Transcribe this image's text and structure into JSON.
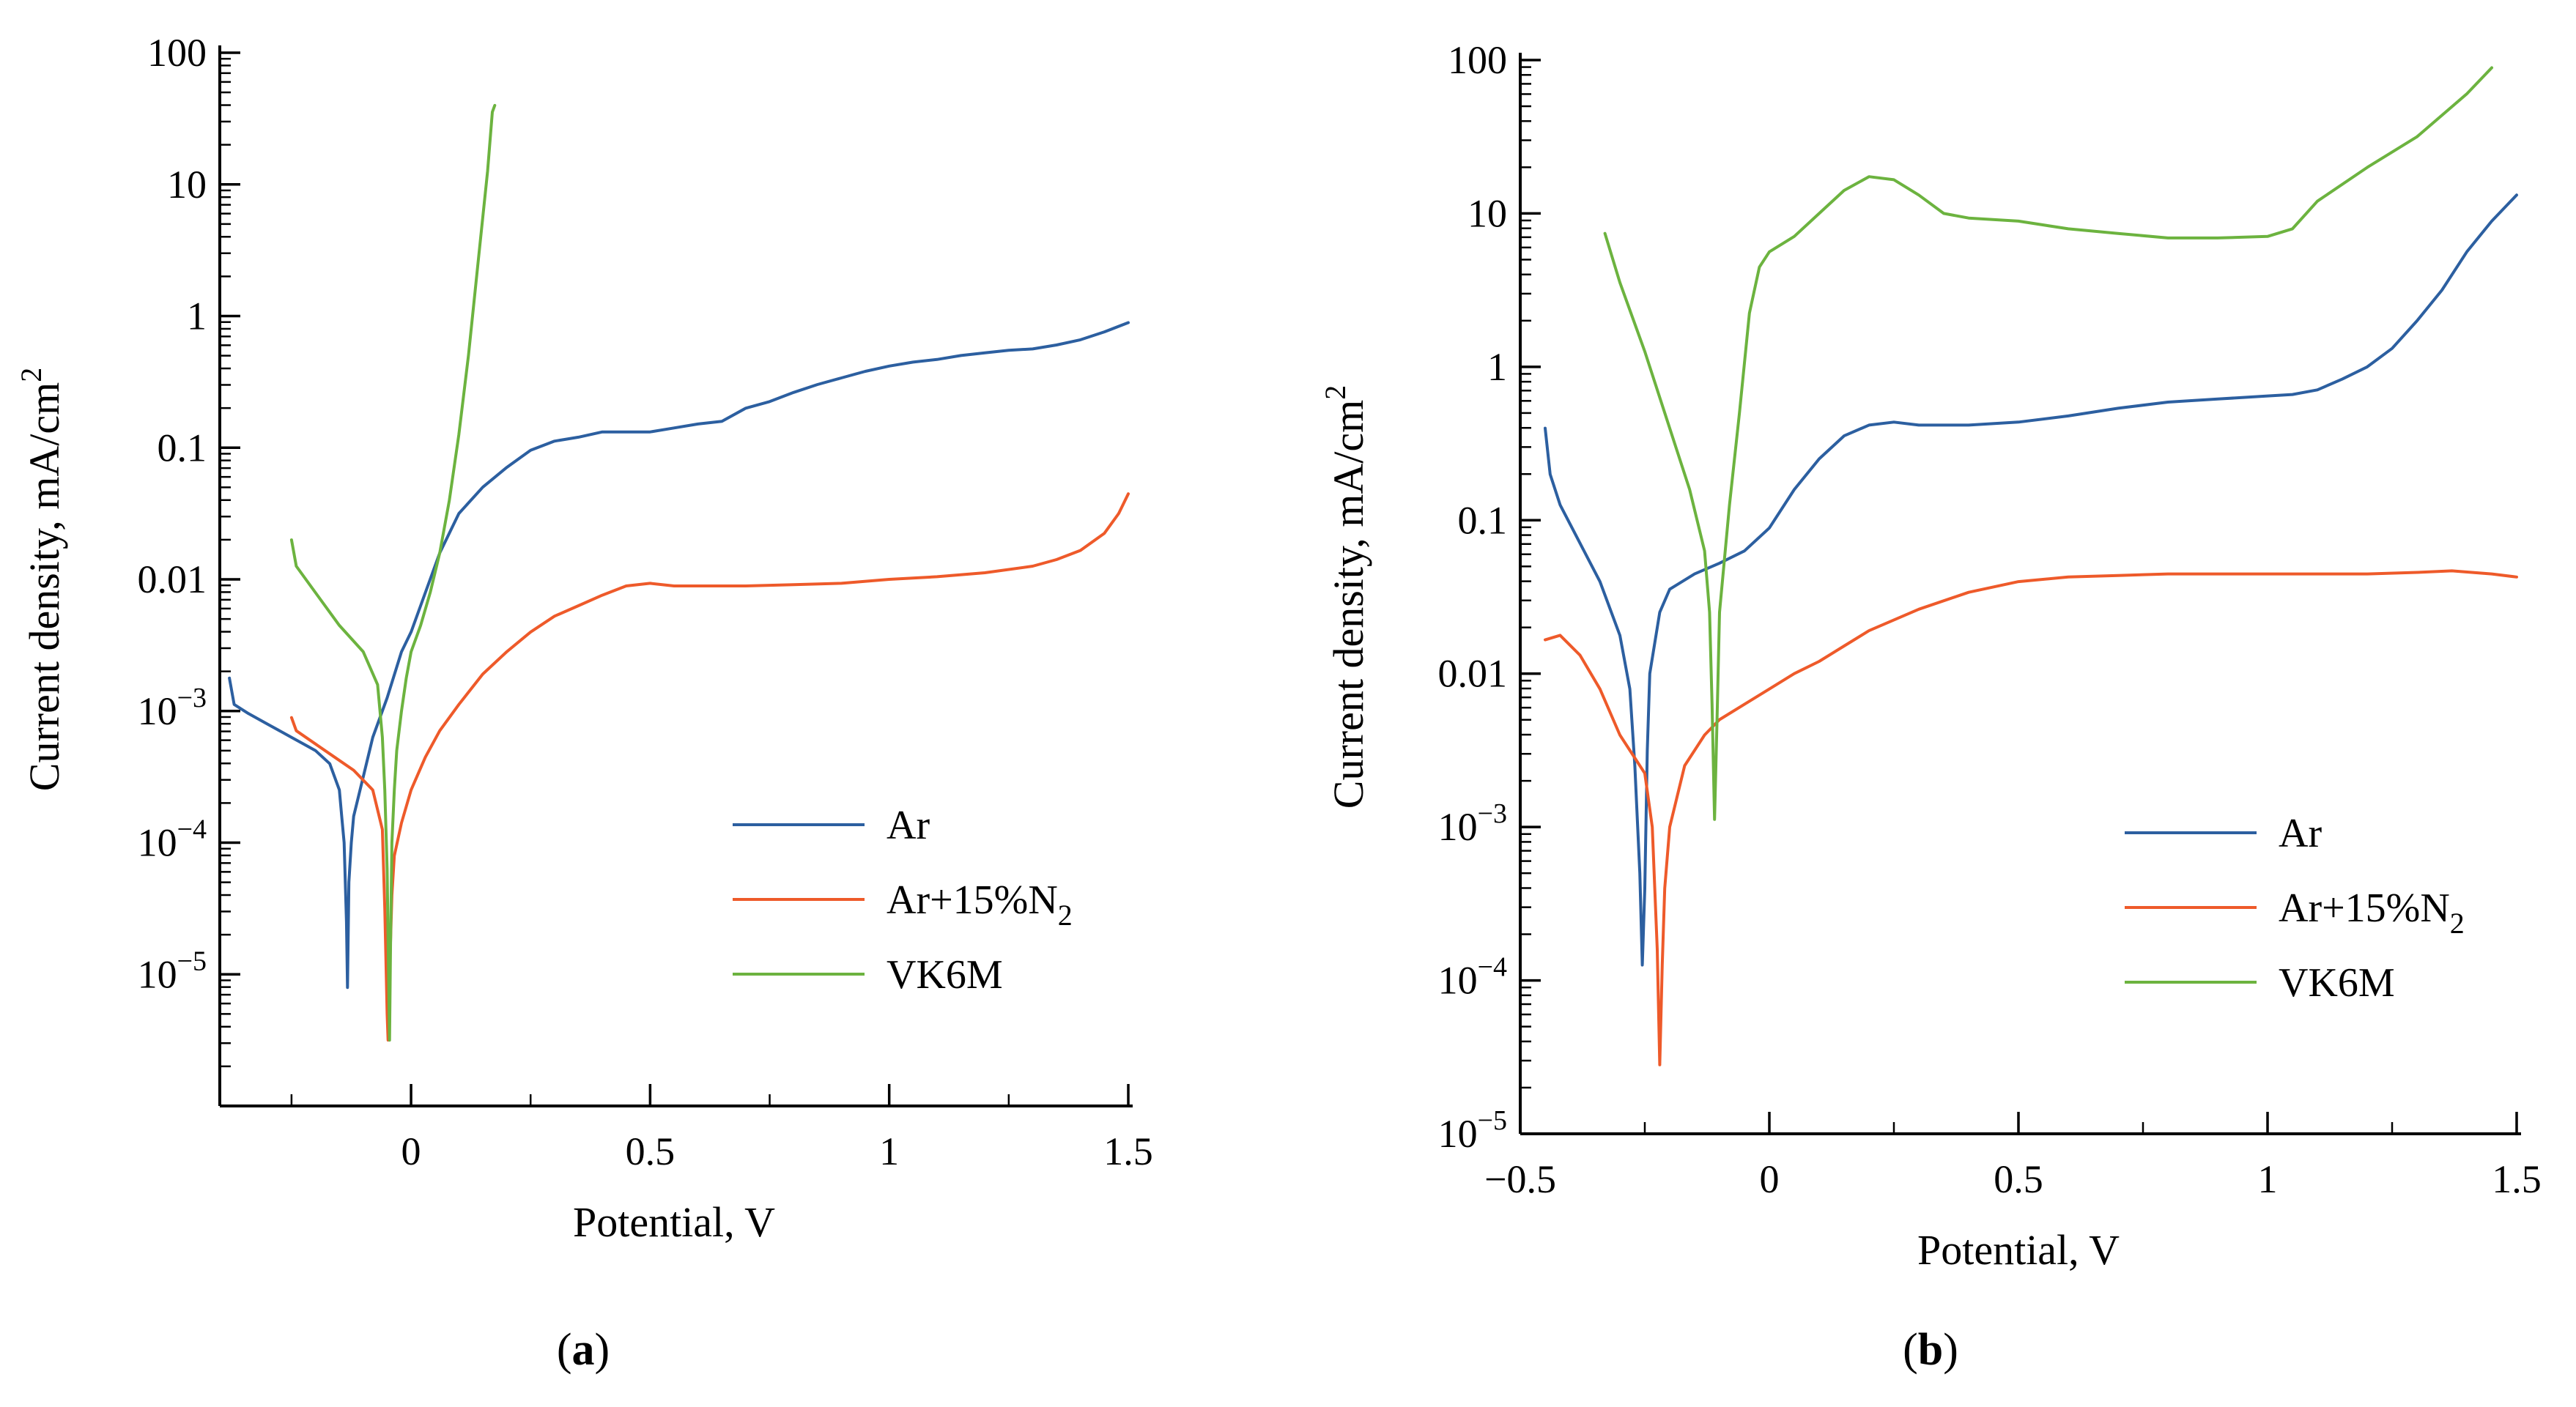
{
  "chart_data": [
    {
      "id": "a",
      "type": "line",
      "panel_label": "a",
      "xlabel": "Potential, V",
      "ylabel": "Current density, mA/cm",
      "ylabel_sup": "2",
      "yscale": "log",
      "xlim": [
        -0.4,
        1.5
      ],
      "ylim_exp": [
        -6,
        2
      ],
      "x_ticks": [
        {
          "v": 0,
          "label": "0"
        },
        {
          "v": 0.5,
          "label": "0.5"
        },
        {
          "v": 1,
          "label": "1"
        },
        {
          "v": 1.5,
          "label": "1.5"
        }
      ],
      "x_minor_ticks": [
        -0.25,
        0.25,
        0.75,
        1.25
      ],
      "y_ticks": [
        {
          "e": 2,
          "base": "100",
          "sup": ""
        },
        {
          "e": 1,
          "base": "10",
          "sup": ""
        },
        {
          "e": 0,
          "base": "1",
          "sup": ""
        },
        {
          "e": -1,
          "base": "0.1",
          "sup": ""
        },
        {
          "e": -2,
          "base": "0.01",
          "sup": ""
        },
        {
          "e": -3,
          "base": "10",
          "sup": "−3"
        },
        {
          "e": -4,
          "base": "10",
          "sup": "−4"
        },
        {
          "e": -5,
          "base": "10",
          "sup": "−5"
        }
      ],
      "legend": [
        {
          "name": "Ar",
          "sub": ""
        },
        {
          "name": "Ar+15%N",
          "sub": "2"
        },
        {
          "name": "VK6M",
          "sub": ""
        }
      ],
      "series": [
        {
          "name": "Ar",
          "color": "#2c5fa0",
          "points": [
            [
              -0.38,
              -2.75
            ],
            [
              -0.37,
              -2.95
            ],
            [
              -0.34,
              -3.02
            ],
            [
              -0.3,
              -3.1
            ],
            [
              -0.25,
              -3.2
            ],
            [
              -0.2,
              -3.3
            ],
            [
              -0.17,
              -3.4
            ],
            [
              -0.15,
              -3.6
            ],
            [
              -0.145,
              -3.8
            ],
            [
              -0.14,
              -4.0
            ],
            [
              -0.135,
              -4.6
            ],
            [
              -0.133,
              -5.1
            ],
            [
              -0.13,
              -4.3
            ],
            [
              -0.125,
              -4.0
            ],
            [
              -0.12,
              -3.8
            ],
            [
              -0.1,
              -3.5
            ],
            [
              -0.08,
              -3.2
            ],
            [
              -0.05,
              -2.9
            ],
            [
              -0.02,
              -2.55
            ],
            [
              0.0,
              -2.4
            ],
            [
              0.03,
              -2.1
            ],
            [
              0.06,
              -1.8
            ],
            [
              0.1,
              -1.5
            ],
            [
              0.15,
              -1.3
            ],
            [
              0.2,
              -1.15
            ],
            [
              0.25,
              -1.02
            ],
            [
              0.3,
              -0.95
            ],
            [
              0.35,
              -0.92
            ],
            [
              0.4,
              -0.88
            ],
            [
              0.45,
              -0.88
            ],
            [
              0.5,
              -0.88
            ],
            [
              0.55,
              -0.85
            ],
            [
              0.6,
              -0.82
            ],
            [
              0.65,
              -0.8
            ],
            [
              0.7,
              -0.7
            ],
            [
              0.75,
              -0.65
            ],
            [
              0.8,
              -0.58
            ],
            [
              0.85,
              -0.52
            ],
            [
              0.9,
              -0.47
            ],
            [
              0.95,
              -0.42
            ],
            [
              1.0,
              -0.38
            ],
            [
              1.05,
              -0.35
            ],
            [
              1.1,
              -0.33
            ],
            [
              1.15,
              -0.3
            ],
            [
              1.2,
              -0.28
            ],
            [
              1.25,
              -0.26
            ],
            [
              1.3,
              -0.25
            ],
            [
              1.35,
              -0.22
            ],
            [
              1.4,
              -0.18
            ],
            [
              1.45,
              -0.12
            ],
            [
              1.5,
              -0.05
            ]
          ]
        },
        {
          "name": "Ar+15%N2",
          "color": "#ee5a2a",
          "points": [
            [
              -0.25,
              -3.05
            ],
            [
              -0.24,
              -3.15
            ],
            [
              -0.2,
              -3.25
            ],
            [
              -0.16,
              -3.35
            ],
            [
              -0.12,
              -3.45
            ],
            [
              -0.08,
              -3.6
            ],
            [
              -0.06,
              -3.9
            ],
            [
              -0.055,
              -4.5
            ],
            [
              -0.05,
              -5.3
            ],
            [
              -0.048,
              -5.5
            ],
            [
              -0.045,
              -5.0
            ],
            [
              -0.04,
              -4.4
            ],
            [
              -0.035,
              -4.1
            ],
            [
              -0.02,
              -3.85
            ],
            [
              0.0,
              -3.6
            ],
            [
              0.03,
              -3.35
            ],
            [
              0.06,
              -3.15
            ],
            [
              0.1,
              -2.95
            ],
            [
              0.15,
              -2.72
            ],
            [
              0.2,
              -2.55
            ],
            [
              0.25,
              -2.4
            ],
            [
              0.3,
              -2.28
            ],
            [
              0.35,
              -2.2
            ],
            [
              0.4,
              -2.12
            ],
            [
              0.45,
              -2.05
            ],
            [
              0.5,
              -2.03
            ],
            [
              0.55,
              -2.05
            ],
            [
              0.6,
              -2.05
            ],
            [
              0.7,
              -2.05
            ],
            [
              0.8,
              -2.04
            ],
            [
              0.9,
              -2.03
            ],
            [
              1.0,
              -2.0
            ],
            [
              1.1,
              -1.98
            ],
            [
              1.2,
              -1.95
            ],
            [
              1.3,
              -1.9
            ],
            [
              1.35,
              -1.85
            ],
            [
              1.4,
              -1.78
            ],
            [
              1.45,
              -1.65
            ],
            [
              1.48,
              -1.5
            ],
            [
              1.5,
              -1.35
            ]
          ]
        },
        {
          "name": "VK6M",
          "color": "#6cb33f",
          "points": [
            [
              -0.25,
              -1.7
            ],
            [
              -0.24,
              -1.9
            ],
            [
              -0.2,
              -2.1
            ],
            [
              -0.15,
              -2.35
            ],
            [
              -0.1,
              -2.55
            ],
            [
              -0.07,
              -2.8
            ],
            [
              -0.06,
              -3.2
            ],
            [
              -0.055,
              -3.6
            ],
            [
              -0.05,
              -4.2
            ],
            [
              -0.047,
              -5.0
            ],
            [
              -0.045,
              -5.5
            ],
            [
              -0.043,
              -4.8
            ],
            [
              -0.04,
              -4.0
            ],
            [
              -0.035,
              -3.6
            ],
            [
              -0.03,
              -3.3
            ],
            [
              -0.02,
              -3.0
            ],
            [
              -0.01,
              -2.75
            ],
            [
              0.0,
              -2.55
            ],
            [
              0.02,
              -2.35
            ],
            [
              0.04,
              -2.1
            ],
            [
              0.06,
              -1.8
            ],
            [
              0.08,
              -1.4
            ],
            [
              0.1,
              -0.9
            ],
            [
              0.12,
              -0.3
            ],
            [
              0.14,
              0.4
            ],
            [
              0.16,
              1.1
            ],
            [
              0.17,
              1.55
            ],
            [
              0.175,
              1.6
            ]
          ]
        }
      ]
    },
    {
      "id": "b",
      "type": "line",
      "panel_label": "b",
      "xlabel": "Potential, V",
      "ylabel": "Current density, mA/cm",
      "ylabel_sup": "2",
      "yscale": "log",
      "xlim": [
        -0.5,
        1.5
      ],
      "ylim_exp": [
        -5,
        2
      ],
      "x_ticks": [
        {
          "v": -0.5,
          "label": "−0.5"
        },
        {
          "v": 0,
          "label": "0"
        },
        {
          "v": 0.5,
          "label": "0.5"
        },
        {
          "v": 1,
          "label": "1"
        },
        {
          "v": 1.5,
          "label": "1.5"
        }
      ],
      "x_minor_ticks": [
        -0.25,
        0.25,
        0.75,
        1.25
      ],
      "y_ticks": [
        {
          "e": 2,
          "base": "100",
          "sup": ""
        },
        {
          "e": 1,
          "base": "10",
          "sup": ""
        },
        {
          "e": 0,
          "base": "1",
          "sup": ""
        },
        {
          "e": -1,
          "base": "0.1",
          "sup": ""
        },
        {
          "e": -2,
          "base": "0.01",
          "sup": ""
        },
        {
          "e": -3,
          "base": "10",
          "sup": "−3"
        },
        {
          "e": -4,
          "base": "10",
          "sup": "−4"
        },
        {
          "e": -5,
          "base": "10",
          "sup": "−5"
        }
      ],
      "legend": [
        {
          "name": "Ar",
          "sub": ""
        },
        {
          "name": "Ar+15%N",
          "sub": "2"
        },
        {
          "name": "VK6M",
          "sub": ""
        }
      ],
      "series": [
        {
          "name": "Ar",
          "color": "#2c5fa0",
          "points": [
            [
              -0.45,
              -0.4
            ],
            [
              -0.44,
              -0.7
            ],
            [
              -0.42,
              -0.9
            ],
            [
              -0.38,
              -1.15
            ],
            [
              -0.34,
              -1.4
            ],
            [
              -0.3,
              -1.75
            ],
            [
              -0.28,
              -2.1
            ],
            [
              -0.27,
              -2.6
            ],
            [
              -0.26,
              -3.3
            ],
            [
              -0.255,
              -3.9
            ],
            [
              -0.25,
              -3.4
            ],
            [
              -0.245,
              -2.5
            ],
            [
              -0.24,
              -2.0
            ],
            [
              -0.22,
              -1.6
            ],
            [
              -0.2,
              -1.45
            ],
            [
              -0.15,
              -1.35
            ],
            [
              -0.1,
              -1.28
            ],
            [
              -0.05,
              -1.2
            ],
            [
              0.0,
              -1.05
            ],
            [
              0.05,
              -0.8
            ],
            [
              0.1,
              -0.6
            ],
            [
              0.15,
              -0.45
            ],
            [
              0.2,
              -0.38
            ],
            [
              0.25,
              -0.36
            ],
            [
              0.3,
              -0.38
            ],
            [
              0.4,
              -0.38
            ],
            [
              0.5,
              -0.36
            ],
            [
              0.6,
              -0.32
            ],
            [
              0.7,
              -0.27
            ],
            [
              0.8,
              -0.23
            ],
            [
              0.9,
              -0.21
            ],
            [
              1.0,
              -0.19
            ],
            [
              1.05,
              -0.18
            ],
            [
              1.1,
              -0.15
            ],
            [
              1.15,
              -0.08
            ],
            [
              1.2,
              0.0
            ],
            [
              1.25,
              0.12
            ],
            [
              1.3,
              0.3
            ],
            [
              1.35,
              0.5
            ],
            [
              1.4,
              0.75
            ],
            [
              1.45,
              0.95
            ],
            [
              1.5,
              1.12
            ]
          ]
        },
        {
          "name": "Ar+15%N2",
          "color": "#ee5a2a",
          "points": [
            [
              -0.45,
              -1.78
            ],
            [
              -0.42,
              -1.75
            ],
            [
              -0.38,
              -1.88
            ],
            [
              -0.34,
              -2.1
            ],
            [
              -0.3,
              -2.4
            ],
            [
              -0.27,
              -2.55
            ],
            [
              -0.25,
              -2.65
            ],
            [
              -0.235,
              -3.0
            ],
            [
              -0.225,
              -3.8
            ],
            [
              -0.22,
              -4.55
            ],
            [
              -0.215,
              -3.9
            ],
            [
              -0.21,
              -3.4
            ],
            [
              -0.2,
              -3.0
            ],
            [
              -0.17,
              -2.6
            ],
            [
              -0.13,
              -2.4
            ],
            [
              -0.1,
              -2.3
            ],
            [
              -0.05,
              -2.2
            ],
            [
              0.0,
              -2.1
            ],
            [
              0.05,
              -2.0
            ],
            [
              0.1,
              -1.92
            ],
            [
              0.15,
              -1.82
            ],
            [
              0.2,
              -1.72
            ],
            [
              0.3,
              -1.58
            ],
            [
              0.4,
              -1.47
            ],
            [
              0.5,
              -1.4
            ],
            [
              0.6,
              -1.37
            ],
            [
              0.7,
              -1.36
            ],
            [
              0.8,
              -1.35
            ],
            [
              0.9,
              -1.35
            ],
            [
              1.0,
              -1.35
            ],
            [
              1.1,
              -1.35
            ],
            [
              1.2,
              -1.35
            ],
            [
              1.3,
              -1.34
            ],
            [
              1.37,
              -1.33
            ],
            [
              1.45,
              -1.35
            ],
            [
              1.5,
              -1.37
            ]
          ]
        },
        {
          "name": "VK6M",
          "color": "#6cb33f",
          "points": [
            [
              -0.33,
              0.87
            ],
            [
              -0.3,
              0.55
            ],
            [
              -0.25,
              0.1
            ],
            [
              -0.2,
              -0.4
            ],
            [
              -0.16,
              -0.8
            ],
            [
              -0.13,
              -1.2
            ],
            [
              -0.12,
              -1.6
            ],
            [
              -0.115,
              -2.2
            ],
            [
              -0.11,
              -2.95
            ],
            [
              -0.105,
              -2.3
            ],
            [
              -0.1,
              -1.6
            ],
            [
              -0.08,
              -0.9
            ],
            [
              -0.06,
              -0.3
            ],
            [
              -0.04,
              0.35
            ],
            [
              -0.02,
              0.65
            ],
            [
              0.0,
              0.75
            ],
            [
              0.05,
              0.85
            ],
            [
              0.1,
              1.0
            ],
            [
              0.15,
              1.15
            ],
            [
              0.2,
              1.24
            ],
            [
              0.25,
              1.22
            ],
            [
              0.3,
              1.12
            ],
            [
              0.35,
              1.0
            ],
            [
              0.4,
              0.97
            ],
            [
              0.5,
              0.95
            ],
            [
              0.6,
              0.9
            ],
            [
              0.7,
              0.87
            ],
            [
              0.8,
              0.84
            ],
            [
              0.9,
              0.84
            ],
            [
              1.0,
              0.85
            ],
            [
              1.05,
              0.9
            ],
            [
              1.1,
              1.08
            ],
            [
              1.2,
              1.3
            ],
            [
              1.3,
              1.5
            ],
            [
              1.4,
              1.78
            ],
            [
              1.45,
              1.95
            ]
          ]
        }
      ]
    }
  ]
}
